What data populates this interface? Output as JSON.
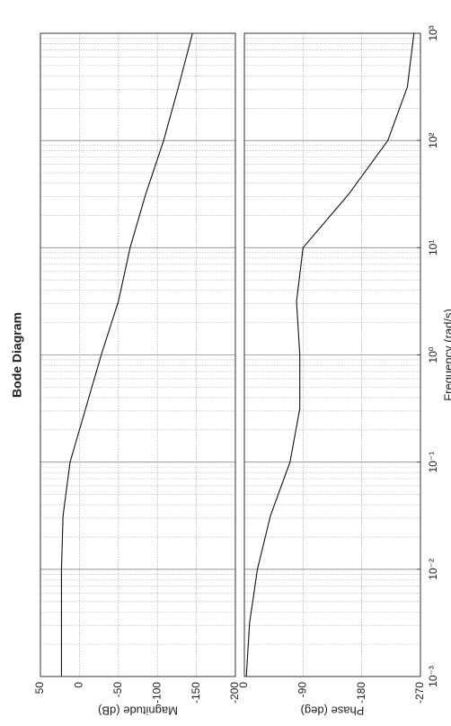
{
  "chart_data": [
    {
      "type": "line",
      "title": "Bode Diagram",
      "ylabel": "Magnitude (dB)",
      "xscale": "log",
      "grid": true,
      "x": [
        0.001,
        0.00316,
        0.01,
        0.0316,
        0.1,
        0.316,
        1,
        3.16,
        10,
        31.6,
        100,
        316,
        1000
      ],
      "xlim": [
        0.001,
        1000
      ],
      "ylim": [
        -200,
        50
      ],
      "yticks": [
        50,
        0,
        -50,
        -100,
        -150,
        -200
      ],
      "series": [
        {
          "name": "Magnitude",
          "color": "#111111",
          "values": [
            23,
            23,
            23,
            21,
            12,
            -8,
            -28,
            -50,
            -65,
            -85,
            -108,
            -127,
            -145
          ]
        }
      ]
    },
    {
      "type": "line",
      "ylabel": "Phase (deg)",
      "xlabel": "Frequency  (rad/s)",
      "xscale": "log",
      "grid": true,
      "x": [
        0.001,
        0.00316,
        0.01,
        0.0316,
        0.1,
        0.316,
        1,
        3.16,
        10,
        31.6,
        100,
        316,
        1000
      ],
      "xlim": [
        0.001,
        1000
      ],
      "xticks": [
        {
          "value": 0.001,
          "label": "10⁻³"
        },
        {
          "value": 0.01,
          "label": "10⁻²"
        },
        {
          "value": 0.1,
          "label": "10⁻¹"
        },
        {
          "value": 1,
          "label": "10⁰"
        },
        {
          "value": 10,
          "label": "10¹"
        },
        {
          "value": 100,
          "label": "10²"
        },
        {
          "value": 1000,
          "label": "10³"
        }
      ],
      "ylim": [
        -270,
        0
      ],
      "yticks": [
        0,
        -90,
        -180,
        -270
      ],
      "series": [
        {
          "name": "Phase",
          "color": "#111111",
          "values": [
            -3,
            -8,
            -20,
            -40,
            -70,
            -85,
            -85,
            -80,
            -90,
            -160,
            -220,
            -250,
            -260
          ]
        }
      ]
    }
  ]
}
